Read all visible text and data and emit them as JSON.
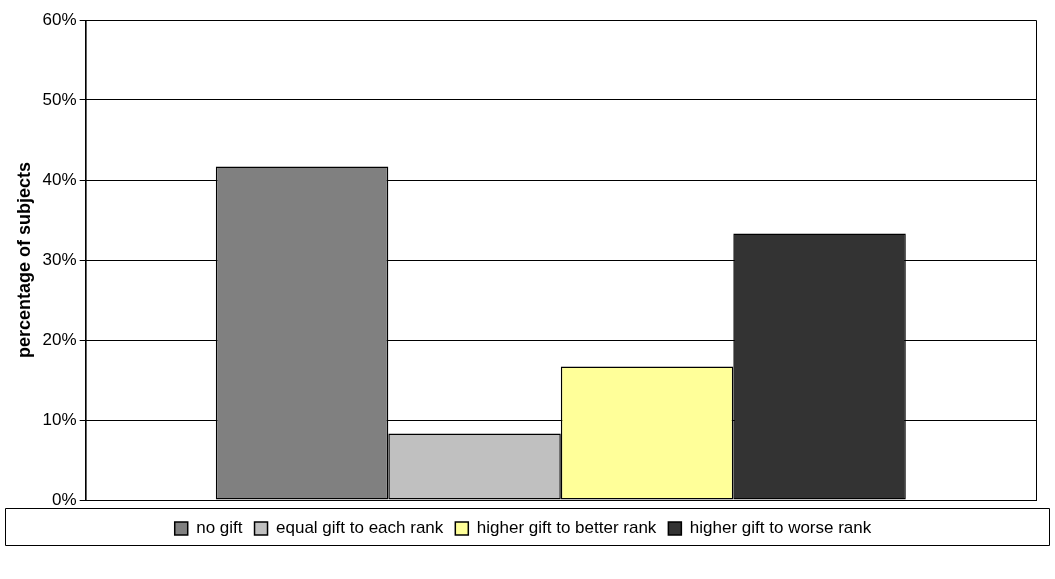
{
  "chart_data": {
    "type": "bar",
    "ylabel": "percentage of subjects",
    "categories": [
      null
    ],
    "series": [
      {
        "name": "no gift",
        "color": "#808080",
        "values": [
          41.7
        ]
      },
      {
        "name": "equal gift to each rank",
        "color": "#c0c0c0",
        "values": [
          8.3
        ]
      },
      {
        "name": "higher gift to better rank",
        "color": "#ffff99",
        "values": [
          16.7
        ]
      },
      {
        "name": "higher gift to worse rank",
        "color": "#333333",
        "values": [
          33.3
        ]
      }
    ],
    "ylim": [
      0,
      60
    ],
    "yticks": [
      {
        "value": 0,
        "label": "0%"
      },
      {
        "value": 10,
        "label": "10%"
      },
      {
        "value": 20,
        "label": "20%"
      },
      {
        "value": 30,
        "label": "30%"
      },
      {
        "value": 40,
        "label": "40%"
      },
      {
        "value": 50,
        "label": "50%"
      },
      {
        "value": 60,
        "label": "60%"
      }
    ],
    "grid": "y",
    "legend": "bottom",
    "tick_labels": "y"
  }
}
